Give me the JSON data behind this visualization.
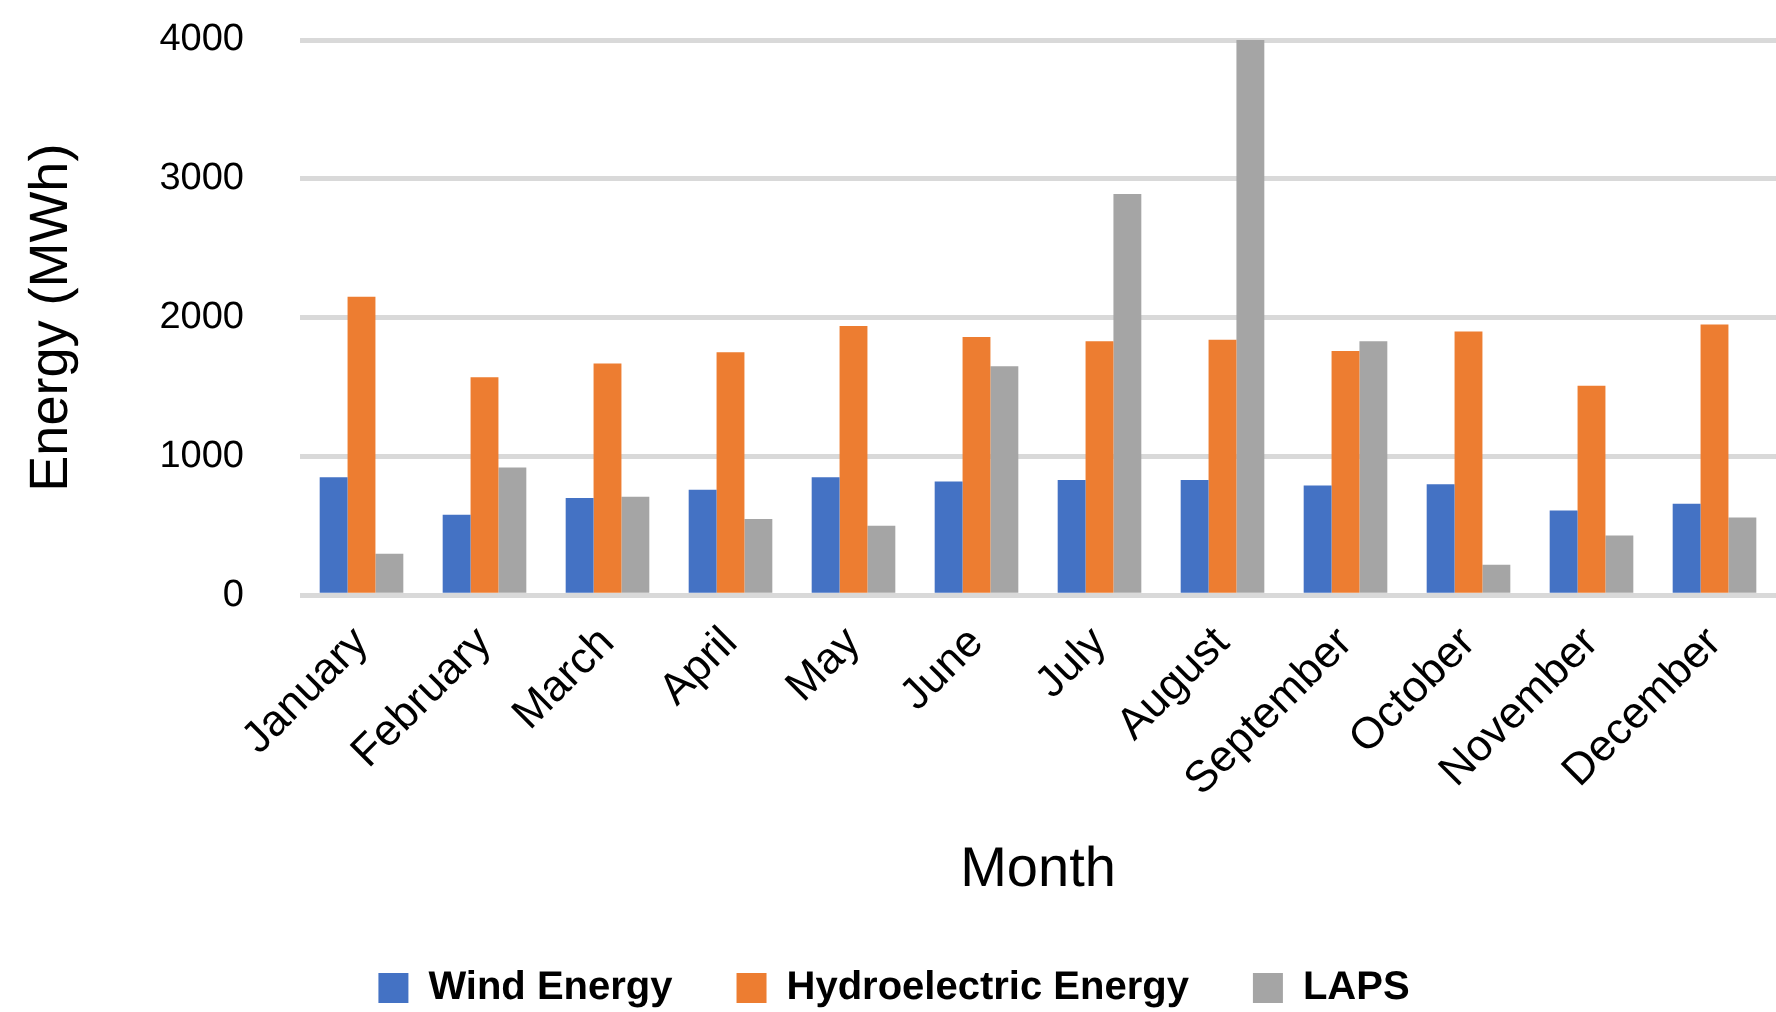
{
  "chart_data": {
    "type": "bar",
    "xlabel": "Month",
    "ylabel": "Energy (MWh)",
    "categories": [
      "January",
      "February",
      "March",
      "April",
      "May",
      "June",
      "July",
      "August",
      "September",
      "October",
      "November",
      "December"
    ],
    "series": [
      {
        "name": "Wind Energy",
        "color": "#4472c4",
        "values": [
          850,
          580,
          700,
          760,
          850,
          820,
          830,
          830,
          790,
          800,
          610,
          660
        ]
      },
      {
        "name": "Hydroelectric Energy",
        "color": "#ed7d31",
        "values": [
          2150,
          1570,
          1670,
          1750,
          1940,
          1860,
          1830,
          1840,
          1760,
          1900,
          1510,
          1950
        ]
      },
      {
        "name": "LAPS",
        "color": "#a5a5a5",
        "values": [
          300,
          920,
          710,
          550,
          500,
          1650,
          2890,
          4000,
          1830,
          220,
          430,
          560
        ]
      }
    ],
    "ylim": [
      0,
      4000
    ],
    "yticks": [
      0,
      1000,
      2000,
      3000,
      4000
    ],
    "grid": "y",
    "legend": "bottom"
  }
}
